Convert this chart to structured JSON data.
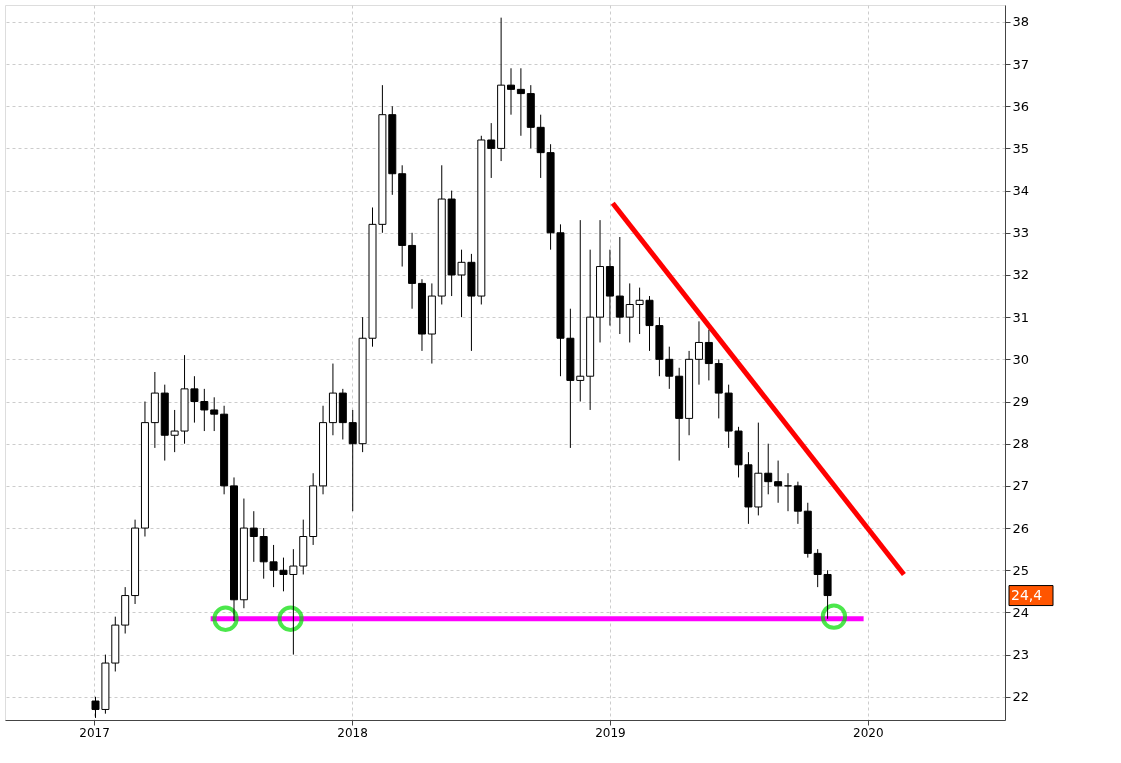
{
  "chart_data": {
    "type": "candlestick",
    "x": [
      "2017-01-03",
      "2017-01-17",
      "2017-01-31",
      "2017-02-14",
      "2017-02-28",
      "2017-03-14",
      "2017-03-28",
      "2017-04-11",
      "2017-04-25",
      "2017-05-09",
      "2017-05-23",
      "2017-06-06",
      "2017-06-20",
      "2017-07-04",
      "2017-07-18",
      "2017-08-01",
      "2017-08-15",
      "2017-08-29",
      "2017-09-12",
      "2017-09-26",
      "2017-10-10",
      "2017-10-24",
      "2017-11-07",
      "2017-11-21",
      "2017-12-05",
      "2017-12-19",
      "2018-01-02",
      "2018-01-16",
      "2018-01-30",
      "2018-02-13",
      "2018-02-27",
      "2018-03-13",
      "2018-03-27",
      "2018-04-10",
      "2018-04-24",
      "2018-05-08",
      "2018-05-22",
      "2018-06-05",
      "2018-06-19",
      "2018-07-03",
      "2018-07-17",
      "2018-07-31",
      "2018-08-14",
      "2018-08-28",
      "2018-09-11",
      "2018-09-25",
      "2018-10-09",
      "2018-10-23",
      "2018-11-06",
      "2018-11-20",
      "2018-12-04",
      "2018-12-18",
      "2019-01-01",
      "2019-01-15",
      "2019-01-29",
      "2019-02-12",
      "2019-02-26",
      "2019-03-12",
      "2019-03-26",
      "2019-04-09",
      "2019-04-23",
      "2019-05-07",
      "2019-05-21",
      "2019-06-04",
      "2019-06-18",
      "2019-07-02",
      "2019-07-16",
      "2019-07-30",
      "2019-08-13",
      "2019-08-27",
      "2019-09-10",
      "2019-09-24",
      "2019-10-08",
      "2019-10-22",
      "2019-11-05"
    ],
    "ohlc": [
      [
        21.9,
        22.0,
        21.5,
        21.7
      ],
      [
        21.7,
        23.0,
        21.6,
        22.8
      ],
      [
        22.8,
        23.9,
        22.6,
        23.7
      ],
      [
        23.7,
        24.6,
        23.5,
        24.4
      ],
      [
        24.4,
        26.2,
        24.2,
        26.0
      ],
      [
        26.0,
        29.0,
        25.8,
        28.5
      ],
      [
        28.5,
        29.7,
        27.9,
        29.2
      ],
      [
        29.2,
        29.4,
        27.6,
        28.2
      ],
      [
        28.2,
        28.8,
        27.8,
        28.3
      ],
      [
        28.3,
        30.1,
        28.0,
        29.3
      ],
      [
        29.3,
        29.6,
        28.5,
        29.0
      ],
      [
        29.0,
        29.3,
        28.3,
        28.8
      ],
      [
        28.8,
        29.1,
        28.3,
        28.7
      ],
      [
        28.7,
        28.9,
        26.8,
        27.0
      ],
      [
        27.0,
        27.2,
        23.8,
        24.3
      ],
      [
        24.3,
        26.7,
        24.1,
        26.0
      ],
      [
        26.0,
        26.4,
        25.2,
        25.8
      ],
      [
        25.8,
        26.0,
        24.8,
        25.2
      ],
      [
        25.2,
        25.6,
        24.6,
        25.0
      ],
      [
        25.0,
        25.3,
        24.5,
        24.9
      ],
      [
        24.9,
        25.5,
        23.0,
        25.1
      ],
      [
        25.1,
        26.2,
        24.9,
        25.8
      ],
      [
        25.8,
        27.3,
        25.6,
        27.0
      ],
      [
        27.0,
        28.9,
        26.8,
        28.5
      ],
      [
        28.5,
        29.9,
        28.2,
        29.2
      ],
      [
        29.2,
        29.3,
        28.1,
        28.5
      ],
      [
        28.5,
        28.8,
        26.4,
        28.0
      ],
      [
        28.0,
        31.0,
        27.8,
        30.5
      ],
      [
        30.5,
        33.6,
        30.3,
        33.2
      ],
      [
        33.2,
        36.5,
        33.0,
        35.8
      ],
      [
        35.8,
        36.0,
        33.9,
        34.4
      ],
      [
        34.4,
        34.6,
        32.2,
        32.7
      ],
      [
        32.7,
        33.0,
        31.2,
        31.8
      ],
      [
        31.8,
        31.9,
        30.2,
        30.6
      ],
      [
        30.6,
        31.8,
        29.9,
        31.5
      ],
      [
        31.5,
        34.6,
        31.3,
        33.8
      ],
      [
        33.8,
        34.0,
        31.5,
        32.0
      ],
      [
        32.0,
        32.6,
        31.0,
        32.3
      ],
      [
        32.3,
        32.5,
        30.2,
        31.5
      ],
      [
        31.5,
        35.3,
        31.3,
        35.2
      ],
      [
        35.2,
        35.6,
        34.3,
        35.0
      ],
      [
        35.0,
        38.1,
        34.7,
        36.5
      ],
      [
        36.5,
        36.9,
        35.8,
        36.4
      ],
      [
        36.4,
        36.9,
        35.3,
        36.3
      ],
      [
        36.3,
        36.5,
        35.0,
        35.5
      ],
      [
        35.5,
        35.8,
        34.3,
        34.9
      ],
      [
        34.9,
        35.1,
        32.6,
        33.0
      ],
      [
        33.0,
        33.2,
        29.6,
        30.5
      ],
      [
        30.5,
        31.2,
        27.9,
        29.5
      ],
      [
        29.5,
        33.3,
        29.0,
        29.6
      ],
      [
        29.6,
        32.6,
        28.8,
        31.0
      ],
      [
        31.0,
        33.3,
        30.4,
        32.2
      ],
      [
        32.2,
        32.6,
        30.8,
        31.5
      ],
      [
        31.5,
        32.9,
        30.6,
        31.0
      ],
      [
        31.0,
        31.8,
        30.4,
        31.3
      ],
      [
        31.3,
        31.7,
        30.6,
        31.4
      ],
      [
        31.4,
        31.5,
        30.2,
        30.8
      ],
      [
        30.8,
        31.0,
        29.6,
        30.0
      ],
      [
        30.0,
        30.3,
        29.3,
        29.6
      ],
      [
        29.6,
        29.8,
        27.6,
        28.6
      ],
      [
        28.6,
        30.2,
        28.2,
        30.0
      ],
      [
        30.0,
        30.9,
        29.4,
        30.4
      ],
      [
        30.4,
        30.7,
        29.5,
        29.9
      ],
      [
        29.9,
        30.0,
        28.6,
        29.2
      ],
      [
        29.2,
        29.4,
        27.9,
        28.3
      ],
      [
        28.3,
        28.4,
        27.2,
        27.5
      ],
      [
        27.5,
        27.8,
        26.1,
        26.5
      ],
      [
        26.5,
        28.5,
        26.3,
        27.3
      ],
      [
        27.3,
        28.0,
        26.8,
        27.1
      ],
      [
        27.1,
        27.6,
        26.6,
        27.0
      ],
      [
        27.0,
        27.3,
        26.4,
        27.0
      ],
      [
        27.0,
        27.1,
        26.1,
        26.4
      ],
      [
        26.4,
        26.6,
        25.3,
        25.4
      ],
      [
        25.4,
        25.5,
        24.6,
        24.9
      ],
      [
        24.9,
        25.0,
        23.85,
        24.4
      ]
    ],
    "series": [
      {
        "type": "line",
        "color": "#ff0000",
        "x": [
          "2019-01-05",
          "2020-02-21"
        ],
        "values": [
          33.7,
          24.9
        ]
      },
      {
        "type": "line",
        "color": "#ff00ff",
        "x": [
          "2017-06-15",
          "2019-12-26"
        ],
        "values": [
          23.85,
          23.85
        ]
      },
      {
        "type": "scatter",
        "marker": "circle",
        "color": "#00dd00",
        "x": [
          "2017-07-06",
          "2017-10-06",
          "2019-11-14"
        ],
        "values": [
          23.85,
          23.85,
          23.9
        ]
      }
    ],
    "annotations": [
      "24,4"
    ],
    "xlim": [
      "2016-09-04",
      "2020-07-06"
    ],
    "xticks": [
      {
        "value": "2017-01-01",
        "label": "2017"
      },
      {
        "value": "2018-01-01",
        "label": "2018"
      },
      {
        "value": "2019-01-01",
        "label": "2019"
      },
      {
        "value": "2020-01-01",
        "label": "2020"
      }
    ],
    "ylim": [
      21.45,
      38.4
    ],
    "yticks": [
      22,
      23,
      24,
      25,
      26,
      27,
      28,
      29,
      30,
      31,
      32,
      33,
      34,
      35,
      36,
      37,
      38
    ],
    "grid": true
  }
}
